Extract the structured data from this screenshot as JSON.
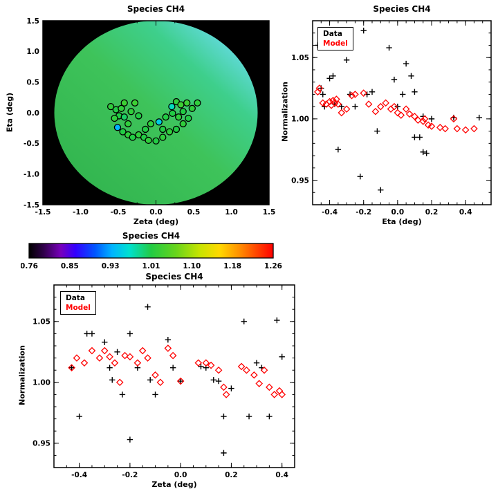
{
  "colors": {
    "background": "#ffffff",
    "frame": "#000000",
    "data_series": "#000000",
    "model_series": "#ff0000"
  },
  "chart_data": [
    {
      "type": "heatmap",
      "title": "Species CH4",
      "xlabel": "Zeta (deg)",
      "ylabel": "Eta (deg)",
      "xlim": [
        -1.5,
        1.5
      ],
      "ylim": [
        -1.5,
        1.5
      ],
      "xticks": [
        -1.5,
        -1.0,
        -0.5,
        0.0,
        0.5,
        1.0,
        1.5
      ],
      "yticks": [
        -1.5,
        -1.0,
        -0.5,
        0.0,
        0.5,
        1.0,
        1.5
      ],
      "xminor_step": 0.25,
      "yminor_step": 0.25,
      "xtick_decimals": 1,
      "ytick_decimals": 1,
      "background": "#000000",
      "field": {
        "shape": "disk",
        "radius_deg": 1.5,
        "gradient_direction": "bottomleft-topright",
        "gradient_stops": [
          [
            0,
            "#2fb14c"
          ],
          [
            0.5,
            "#3ec35a"
          ],
          [
            0.72,
            "#3ecf8c"
          ],
          [
            0.85,
            "#5cd8cf"
          ],
          [
            1,
            "#aadfee"
          ]
        ]
      },
      "colormap_range": [
        0.76,
        1.26
      ],
      "points": [
        [
          -0.6,
          0.1,
          1.02
        ],
        [
          -0.53,
          0.05,
          1.01
        ],
        [
          -0.46,
          0.07,
          1.02
        ],
        [
          -0.42,
          0.16,
          1.03
        ],
        [
          -0.49,
          -0.05,
          1.01
        ],
        [
          -0.55,
          -0.09,
          1.02
        ],
        [
          -0.42,
          -0.07,
          1.0
        ],
        [
          -0.33,
          0.02,
          1.02
        ],
        [
          -0.28,
          0.16,
          1.03
        ],
        [
          -0.23,
          -0.05,
          1.01
        ],
        [
          -0.37,
          -0.18,
          1.02
        ],
        [
          -0.51,
          -0.24,
          0.93
        ],
        [
          -0.44,
          -0.31,
          1.01
        ],
        [
          -0.37,
          -0.36,
          1.02
        ],
        [
          -0.31,
          -0.4,
          1.01
        ],
        [
          -0.23,
          -0.36,
          1.02
        ],
        [
          -0.16,
          -0.4,
          1.01
        ],
        [
          -0.1,
          -0.45,
          1.02
        ],
        [
          0.0,
          -0.46,
          1.01
        ],
        [
          0.09,
          -0.4,
          1.02
        ],
        [
          -0.14,
          -0.27,
          1.01
        ],
        [
          -0.07,
          -0.18,
          1.02
        ],
        [
          0.04,
          -0.15,
          0.95
        ],
        [
          0.13,
          -0.07,
          1.01
        ],
        [
          0.21,
          0.1,
          0.97
        ],
        [
          0.27,
          0.18,
          1.02
        ],
        [
          0.33,
          0.13,
          1.03
        ],
        [
          0.22,
          -0.01,
          1.01
        ],
        [
          0.3,
          -0.07,
          1.02
        ],
        [
          0.36,
          0.02,
          1.01
        ],
        [
          0.41,
          0.16,
          1.03
        ],
        [
          0.48,
          0.07,
          1.02
        ],
        [
          0.55,
          0.16,
          1.02
        ],
        [
          0.43,
          -0.09,
          1.01
        ],
        [
          0.36,
          -0.18,
          1.02
        ],
        [
          0.27,
          -0.27,
          1.01
        ],
        [
          0.18,
          -0.31,
          1.02
        ],
        [
          0.09,
          -0.27,
          1.01
        ]
      ]
    },
    {
      "type": "colorbar",
      "title": "Species CH4",
      "min": 0.76,
      "max": 1.26,
      "tick_labels": [
        "0.76",
        "0.85",
        "0.93",
        "1.01",
        "1.10",
        "1.18",
        "1.26"
      ],
      "stops": [
        [
          0.0,
          "#000000"
        ],
        [
          0.06,
          "#30004a"
        ],
        [
          0.13,
          "#7700bb"
        ],
        [
          0.19,
          "#3300ff"
        ],
        [
          0.27,
          "#0055ff"
        ],
        [
          0.34,
          "#00b4ff"
        ],
        [
          0.41,
          "#00e0d0"
        ],
        [
          0.5,
          "#22cc44"
        ],
        [
          0.6,
          "#66d41c"
        ],
        [
          0.7,
          "#c8e400"
        ],
        [
          0.78,
          "#ffd900"
        ],
        [
          0.86,
          "#ff9100"
        ],
        [
          0.93,
          "#ff4700"
        ],
        [
          1.0,
          "#ff0000"
        ]
      ]
    },
    {
      "type": "scatter",
      "title": "Species CH4",
      "xlabel": "Eta (deg)",
      "ylabel": "Normalization",
      "xlim": [
        -0.5,
        0.55
      ],
      "ylim": [
        0.93,
        1.08
      ],
      "xticks": [
        -0.4,
        -0.2,
        0.0,
        0.2,
        0.4
      ],
      "yticks": [
        0.95,
        1.0,
        1.05
      ],
      "xminor_step": 0.05,
      "yminor_step": 0.01,
      "xtick_decimals": 1,
      "ytick_decimals": 2,
      "series": [
        {
          "name": "Data",
          "marker": "plus",
          "color": "#000000",
          "points": [
            [
              -0.47,
              1.06
            ],
            [
              -0.45,
              1.025
            ],
            [
              -0.44,
              1.02
            ],
            [
              -0.43,
              1.01
            ],
            [
              -0.4,
              1.033
            ],
            [
              -0.38,
              1.035
            ],
            [
              -0.37,
              1.012
            ],
            [
              -0.35,
              0.975
            ],
            [
              -0.33,
              1.01
            ],
            [
              -0.3,
              1.048
            ],
            [
              -0.28,
              1.02
            ],
            [
              -0.25,
              1.01
            ],
            [
              -0.22,
              0.953
            ],
            [
              -0.2,
              1.072
            ],
            [
              -0.18,
              1.02
            ],
            [
              -0.15,
              1.022
            ],
            [
              -0.12,
              0.99
            ],
            [
              -0.1,
              0.942
            ],
            [
              -0.05,
              1.058
            ],
            [
              -0.02,
              1.032
            ],
            [
              0.0,
              1.01
            ],
            [
              0.03,
              1.02
            ],
            [
              0.05,
              1.045
            ],
            [
              0.08,
              1.035
            ],
            [
              0.1,
              1.022
            ],
            [
              0.1,
              0.985
            ],
            [
              0.13,
              0.985
            ],
            [
              0.15,
              1.002
            ],
            [
              0.15,
              0.973
            ],
            [
              0.17,
              0.972
            ],
            [
              0.2,
              1.0
            ],
            [
              0.33,
              1.001
            ],
            [
              0.48,
              1.001
            ]
          ]
        },
        {
          "name": "Model",
          "marker": "diamond",
          "color": "#ff0000",
          "points": [
            [
              -0.47,
              1.022
            ],
            [
              -0.46,
              1.025
            ],
            [
              -0.44,
              1.013
            ],
            [
              -0.42,
              1.012
            ],
            [
              -0.4,
              1.014
            ],
            [
              -0.39,
              1.011
            ],
            [
              -0.38,
              1.015
            ],
            [
              -0.37,
              1.013
            ],
            [
              -0.36,
              1.016
            ],
            [
              -0.35,
              1.012
            ],
            [
              -0.33,
              1.005
            ],
            [
              -0.3,
              1.008
            ],
            [
              -0.27,
              1.019
            ],
            [
              -0.25,
              1.02
            ],
            [
              -0.2,
              1.021
            ],
            [
              -0.17,
              1.012
            ],
            [
              -0.13,
              1.006
            ],
            [
              -0.1,
              1.01
            ],
            [
              -0.07,
              1.013
            ],
            [
              -0.04,
              1.008
            ],
            [
              -0.02,
              1.01
            ],
            [
              0.0,
              1.005
            ],
            [
              0.02,
              1.003
            ],
            [
              0.05,
              1.008
            ],
            [
              0.07,
              1.004
            ],
            [
              0.1,
              1.002
            ],
            [
              0.12,
              0.999
            ],
            [
              0.15,
              0.998
            ],
            [
              0.16,
              1.0
            ],
            [
              0.18,
              0.995
            ],
            [
              0.2,
              0.994
            ],
            [
              0.25,
              0.993
            ],
            [
              0.28,
              0.992
            ],
            [
              0.33,
              1.0
            ],
            [
              0.35,
              0.992
            ],
            [
              0.4,
              0.991
            ],
            [
              0.45,
              0.992
            ]
          ]
        }
      ]
    },
    {
      "type": "scatter",
      "title": "Species CH4",
      "xlabel": "Zeta (deg)",
      "ylabel": "Normalization",
      "xlim": [
        -0.5,
        0.45
      ],
      "ylim": [
        0.93,
        1.08
      ],
      "xticks": [
        -0.4,
        -0.2,
        0.0,
        0.2,
        0.4
      ],
      "yticks": [
        0.95,
        1.0,
        1.05
      ],
      "xminor_step": 0.05,
      "yminor_step": 0.01,
      "xtick_decimals": 1,
      "ytick_decimals": 2,
      "series": [
        {
          "name": "Data",
          "marker": "plus",
          "color": "#000000",
          "points": [
            [
              -0.43,
              1.012
            ],
            [
              -0.4,
              0.972
            ],
            [
              -0.37,
              1.04
            ],
            [
              -0.35,
              1.04
            ],
            [
              -0.3,
              1.033
            ],
            [
              -0.28,
              1.012
            ],
            [
              -0.27,
              1.002
            ],
            [
              -0.25,
              1.025
            ],
            [
              -0.23,
              0.99
            ],
            [
              -0.2,
              1.04
            ],
            [
              -0.2,
              0.953
            ],
            [
              -0.17,
              1.012
            ],
            [
              -0.13,
              1.062
            ],
            [
              -0.12,
              1.002
            ],
            [
              -0.1,
              0.99
            ],
            [
              -0.05,
              1.035
            ],
            [
              -0.03,
              1.012
            ],
            [
              0.0,
              1.001
            ],
            [
              0.08,
              1.013
            ],
            [
              0.1,
              1.012
            ],
            [
              0.13,
              1.002
            ],
            [
              0.15,
              1.001
            ],
            [
              0.17,
              0.972
            ],
            [
              0.17,
              0.942
            ],
            [
              0.2,
              0.995
            ],
            [
              0.25,
              1.05
            ],
            [
              0.27,
              0.972
            ],
            [
              0.3,
              1.016
            ],
            [
              0.32,
              1.012
            ],
            [
              0.35,
              0.972
            ],
            [
              0.38,
              1.051
            ],
            [
              0.4,
              1.021
            ]
          ]
        },
        {
          "name": "Model",
          "marker": "diamond",
          "color": "#ff0000",
          "points": [
            [
              -0.43,
              1.012
            ],
            [
              -0.41,
              1.02
            ],
            [
              -0.38,
              1.016
            ],
            [
              -0.35,
              1.026
            ],
            [
              -0.32,
              1.02
            ],
            [
              -0.3,
              1.026
            ],
            [
              -0.28,
              1.021
            ],
            [
              -0.26,
              1.016
            ],
            [
              -0.24,
              1.0
            ],
            [
              -0.22,
              1.022
            ],
            [
              -0.2,
              1.021
            ],
            [
              -0.17,
              1.016
            ],
            [
              -0.15,
              1.026
            ],
            [
              -0.13,
              1.02
            ],
            [
              -0.1,
              1.006
            ],
            [
              -0.08,
              1.0
            ],
            [
              -0.05,
              1.028
            ],
            [
              -0.03,
              1.022
            ],
            [
              0.0,
              1.001
            ],
            [
              0.07,
              1.016
            ],
            [
              0.1,
              1.016
            ],
            [
              0.12,
              1.014
            ],
            [
              0.15,
              1.01
            ],
            [
              0.17,
              0.996
            ],
            [
              0.18,
              0.99
            ],
            [
              0.24,
              1.013
            ],
            [
              0.26,
              1.01
            ],
            [
              0.29,
              1.006
            ],
            [
              0.31,
              0.999
            ],
            [
              0.33,
              1.01
            ],
            [
              0.35,
              0.996
            ],
            [
              0.37,
              0.99
            ],
            [
              0.39,
              0.993
            ],
            [
              0.4,
              0.99
            ]
          ]
        }
      ]
    }
  ]
}
